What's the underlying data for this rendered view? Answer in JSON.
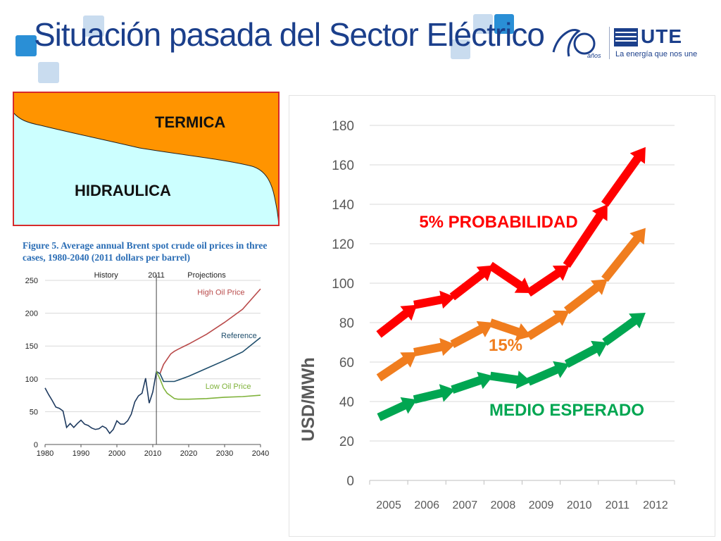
{
  "slide": {
    "title": "Situación pasada del Sector Eléctrico",
    "logo": {
      "tagline": "La energía que nos une",
      "brand": "UTE",
      "years_mark": "años"
    },
    "colors": {
      "title": "#1b3f8b",
      "accent_square": "#2a8fd6",
      "light_square": "#c9dcef"
    }
  },
  "area_chart": {
    "type": "area",
    "labels": {
      "top": "TERMICA",
      "bottom": "HIDRAULICA"
    },
    "colors": {
      "top": "#ff9400",
      "bottom": "#ccffff",
      "border": "#d62b2b"
    }
  },
  "oil_chart": {
    "type": "line",
    "title": "Figure 5. Average annual Brent spot crude oil prices in three cases, 1980-2040 (2011 dollars per barrel)",
    "header_labels": {
      "history": "History",
      "year": "2011",
      "projections": "Projections"
    },
    "x_ticks": [
      "1980",
      "1990",
      "2000",
      "2010",
      "2020",
      "2030",
      "2040"
    ],
    "y_ticks": [
      "0",
      "50",
      "100",
      "150",
      "200",
      "250"
    ],
    "xlim": [
      1980,
      2040
    ],
    "ylim": [
      0,
      250
    ],
    "series": [
      {
        "name": "History",
        "color": "#1e3a5f",
        "x": [
          1980,
          1981,
          1982,
          1983,
          1984,
          1985,
          1986,
          1987,
          1988,
          1989,
          1990,
          1991,
          1992,
          1993,
          1994,
          1995,
          1996,
          1997,
          1998,
          1999,
          2000,
          2001,
          2002,
          2003,
          2004,
          2005,
          2006,
          2007,
          2008,
          2009,
          2010,
          2011
        ],
        "y": [
          86,
          76,
          67,
          57,
          55,
          51,
          26,
          32,
          26,
          32,
          37,
          31,
          29,
          25,
          23,
          24,
          28,
          25,
          17,
          23,
          36,
          31,
          31,
          36,
          46,
          65,
          74,
          78,
          101,
          63,
          80,
          111
        ]
      },
      {
        "name": "High Oil Price",
        "color": "#b94a4a",
        "x": [
          2011,
          2012,
          2013,
          2014,
          2015,
          2016,
          2017,
          2020,
          2025,
          2030,
          2035,
          2040
        ],
        "y": [
          111,
          108,
          122,
          130,
          138,
          142,
          145,
          153,
          168,
          186,
          206,
          237
        ]
      },
      {
        "name": "Reference",
        "color": "#1e4d6b",
        "x": [
          2011,
          2012,
          2013,
          2014,
          2015,
          2016,
          2017,
          2020,
          2025,
          2030,
          2035,
          2040
        ],
        "y": [
          111,
          108,
          96,
          96,
          96,
          96,
          98,
          104,
          116,
          128,
          141,
          163
        ]
      },
      {
        "name": "Low Oil Price",
        "color": "#7fb23a",
        "x": [
          2011,
          2012,
          2013,
          2014,
          2015,
          2016,
          2017,
          2020,
          2025,
          2030,
          2035,
          2040
        ],
        "y": [
          111,
          100,
          86,
          78,
          74,
          70,
          69,
          69,
          70,
          72,
          73,
          75
        ]
      }
    ]
  },
  "chart_data": {
    "type": "line",
    "categories": [
      "2005",
      "2006",
      "2007",
      "2008",
      "2009",
      "2010",
      "2011",
      "2012"
    ],
    "ylabel": "USD/MWh",
    "ylim": [
      0,
      180
    ],
    "y_ticks": [
      0,
      20,
      40,
      60,
      80,
      100,
      120,
      140,
      160,
      180
    ],
    "grid": true,
    "series": [
      {
        "name": "5% PROBABILIDAD",
        "color": "#ff0000",
        "values": [
          74,
          89,
          93,
          109,
          95,
          109,
          140,
          169
        ]
      },
      {
        "name": "15%",
        "color": "#f07d1e",
        "values": [
          52,
          65,
          69,
          80,
          73,
          86,
          102,
          128
        ]
      },
      {
        "name": "MEDIO ESPERADO",
        "color": "#00a651",
        "values": [
          32,
          41,
          46,
          53,
          50,
          59,
          70,
          85
        ]
      }
    ]
  }
}
